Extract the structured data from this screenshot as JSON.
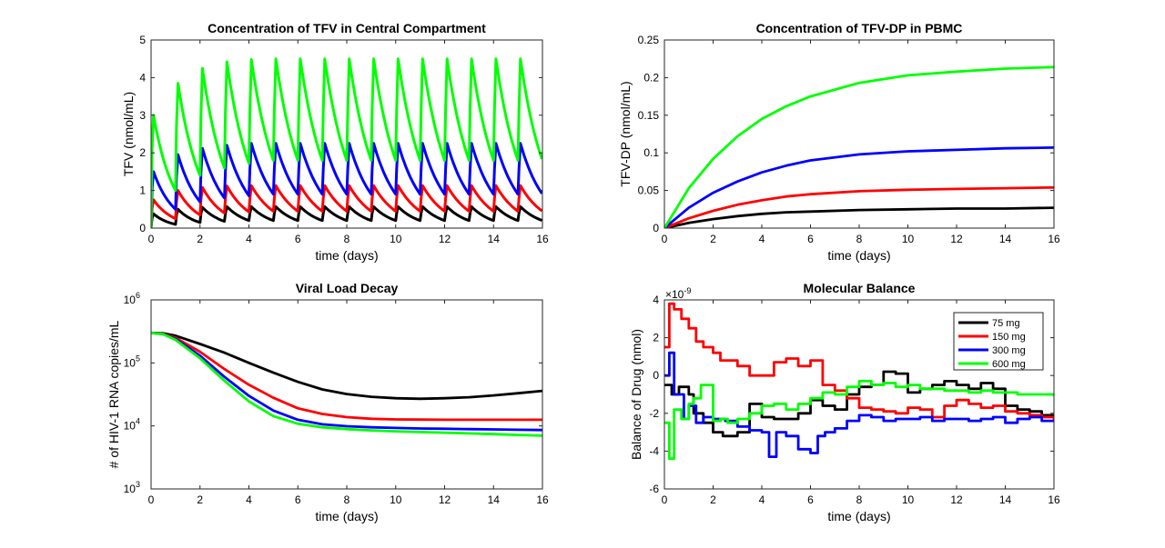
{
  "chart_data": [
    {
      "type": "line",
      "title": "Concentration of TFV in Central Compartment",
      "xlabel": "time (days)",
      "ylabel": "TFV (nmol/mL)",
      "xlim": [
        0,
        16
      ],
      "ylim": [
        0,
        5
      ],
      "xticks": [
        0,
        2,
        4,
        6,
        8,
        10,
        12,
        14,
        16
      ],
      "yticks": [
        0,
        1,
        2,
        3,
        4,
        5
      ],
      "ytick_labels": [
        "0",
        "1",
        "2",
        "3",
        "4",
        "5"
      ],
      "scale": "linear",
      "grid": false,
      "dosing_interval_days": 1,
      "series": [
        {
          "name": "75 mg",
          "color": "#000000",
          "peaks": [
            0.38,
            0.5,
            0.55,
            0.57,
            0.57,
            0.57,
            0.57,
            0.57,
            0.57,
            0.57,
            0.57,
            0.57,
            0.57,
            0.57,
            0.57,
            0.57
          ],
          "troughs": [
            0.1,
            0.15,
            0.18,
            0.2,
            0.2,
            0.2,
            0.2,
            0.2,
            0.2,
            0.2,
            0.2,
            0.2,
            0.2,
            0.2,
            0.2,
            0.2
          ]
        },
        {
          "name": "150 mg",
          "color": "#ff0000",
          "peaks": [
            0.75,
            1.0,
            1.08,
            1.12,
            1.13,
            1.13,
            1.13,
            1.13,
            1.13,
            1.13,
            1.13,
            1.13,
            1.13,
            1.13,
            1.13,
            1.13
          ],
          "troughs": [
            0.25,
            0.35,
            0.4,
            0.43,
            0.45,
            0.45,
            0.45,
            0.45,
            0.45,
            0.45,
            0.45,
            0.45,
            0.45,
            0.45,
            0.45,
            0.45
          ]
        },
        {
          "name": "300 mg",
          "color": "#0000ff",
          "peaks": [
            1.5,
            1.95,
            2.12,
            2.2,
            2.25,
            2.25,
            2.25,
            2.25,
            2.25,
            2.25,
            2.25,
            2.25,
            2.25,
            2.25,
            2.25,
            2.25
          ],
          "troughs": [
            0.5,
            0.7,
            0.8,
            0.86,
            0.9,
            0.9,
            0.9,
            0.9,
            0.9,
            0.9,
            0.9,
            0.9,
            0.9,
            0.9,
            0.9,
            0.9
          ]
        },
        {
          "name": "600 mg",
          "color": "#00ff00",
          "peaks": [
            3.0,
            3.85,
            4.25,
            4.42,
            4.48,
            4.5,
            4.5,
            4.5,
            4.5,
            4.5,
            4.5,
            4.5,
            4.5,
            4.5,
            4.5,
            4.5
          ],
          "troughs": [
            1.0,
            1.4,
            1.6,
            1.72,
            1.8,
            1.8,
            1.8,
            1.8,
            1.8,
            1.8,
            1.8,
            1.8,
            1.8,
            1.8,
            1.8,
            1.8
          ]
        }
      ]
    },
    {
      "type": "line",
      "title": "Concentration of TFV-DP in PBMC",
      "xlabel": "time (days)",
      "ylabel": "TFV-DP (nmol/mL)",
      "xlim": [
        0,
        16
      ],
      "ylim": [
        0,
        0.25
      ],
      "xticks": [
        0,
        2,
        4,
        6,
        8,
        10,
        12,
        14,
        16
      ],
      "yticks": [
        0,
        0.05,
        0.1,
        0.15,
        0.2,
        0.25
      ],
      "ytick_labels": [
        "0",
        "0.05",
        "0.1",
        "0.15",
        "0.2",
        "0.25"
      ],
      "scale": "linear",
      "grid": false,
      "series": [
        {
          "name": "75 mg",
          "color": "#000000",
          "x": [
            0,
            1,
            2,
            3,
            4,
            5,
            6,
            8,
            10,
            12,
            14,
            16
          ],
          "y": [
            0,
            0.007,
            0.012,
            0.016,
            0.019,
            0.021,
            0.022,
            0.024,
            0.025,
            0.026,
            0.026,
            0.027
          ]
        },
        {
          "name": "150 mg",
          "color": "#ff0000",
          "x": [
            0,
            1,
            2,
            3,
            4,
            5,
            6,
            8,
            10,
            12,
            14,
            16
          ],
          "y": [
            0,
            0.013,
            0.023,
            0.031,
            0.037,
            0.042,
            0.045,
            0.049,
            0.051,
            0.052,
            0.053,
            0.054
          ]
        },
        {
          "name": "300 mg",
          "color": "#0000ff",
          "x": [
            0,
            1,
            2,
            3,
            4,
            5,
            6,
            8,
            10,
            12,
            14,
            16
          ],
          "y": [
            0,
            0.027,
            0.047,
            0.062,
            0.074,
            0.083,
            0.09,
            0.098,
            0.102,
            0.104,
            0.106,
            0.107
          ]
        },
        {
          "name": "600 mg",
          "color": "#00ff00",
          "x": [
            0,
            1,
            2,
            3,
            4,
            5,
            6,
            8,
            10,
            12,
            14,
            16
          ],
          "y": [
            0,
            0.053,
            0.092,
            0.122,
            0.145,
            0.162,
            0.175,
            0.193,
            0.203,
            0.208,
            0.212,
            0.214
          ]
        }
      ]
    },
    {
      "type": "line",
      "title": "Viral Load Decay",
      "xlabel": "time (days)",
      "ylabel": "# of HIV-1 RNA copies/mL",
      "xlim": [
        0,
        16
      ],
      "ylim": [
        1000,
        1000000
      ],
      "xticks": [
        0,
        2,
        4,
        6,
        8,
        10,
        12,
        14,
        16
      ],
      "yticks": [
        1000,
        10000,
        100000,
        1000000
      ],
      "ytick_labels": [
        "10",
        "10",
        "10",
        "10"
      ],
      "ytick_exponents": [
        "3",
        "4",
        "5",
        "6"
      ],
      "scale": "log",
      "grid": false,
      "series": [
        {
          "name": "75 mg",
          "color": "#000000",
          "x": [
            0,
            0.5,
            1,
            2,
            3,
            4,
            5,
            6,
            7,
            8,
            9,
            10,
            11,
            12,
            13,
            14,
            15,
            16
          ],
          "y": [
            300000,
            295000,
            270000,
            200000,
            145000,
            100000,
            70000,
            50000,
            38000,
            32000,
            29000,
            27500,
            27000,
            27500,
            28500,
            30500,
            33000,
            36000
          ]
        },
        {
          "name": "150 mg",
          "color": "#ff0000",
          "x": [
            0,
            0.5,
            1,
            2,
            3,
            4,
            5,
            6,
            7,
            8,
            9,
            10,
            11,
            12,
            13,
            14,
            15,
            16
          ],
          "y": [
            300000,
            290000,
            250000,
            150000,
            80000,
            45000,
            28000,
            19000,
            15500,
            13800,
            13000,
            12700,
            12600,
            12500,
            12500,
            12500,
            12500,
            12500
          ]
        },
        {
          "name": "300 mg",
          "color": "#0000ff",
          "x": [
            0,
            0.5,
            1,
            2,
            3,
            4,
            5,
            6,
            7,
            8,
            9,
            10,
            11,
            12,
            13,
            14,
            15,
            16
          ],
          "y": [
            300000,
            288000,
            240000,
            130000,
            60000,
            30000,
            17500,
            12500,
            10600,
            9900,
            9500,
            9300,
            9100,
            9000,
            8900,
            8800,
            8700,
            8600
          ]
        },
        {
          "name": "600 mg",
          "color": "#00ff00",
          "x": [
            0,
            0.5,
            1,
            2,
            3,
            4,
            5,
            6,
            7,
            8,
            9,
            10,
            11,
            12,
            13,
            14,
            15,
            16
          ],
          "y": [
            300000,
            285000,
            232000,
            118000,
            52000,
            24500,
            14300,
            10800,
            9500,
            8900,
            8500,
            8200,
            8000,
            7800,
            7600,
            7400,
            7200,
            7000
          ]
        }
      ]
    },
    {
      "type": "line",
      "title": "Molecular Balance",
      "xlabel": "time (days)",
      "ylabel": "Balance of Drug (nmol)",
      "xlim": [
        0,
        16
      ],
      "ylim": [
        -6,
        4
      ],
      "y_multiplier": "×10",
      "y_multiplier_exponent": "-9",
      "xticks": [
        0,
        2,
        4,
        6,
        8,
        10,
        12,
        14,
        16
      ],
      "yticks": [
        -6,
        -4,
        -2,
        0,
        2,
        4
      ],
      "ytick_labels": [
        "-6",
        "-4",
        "-2",
        "0",
        "2",
        "4"
      ],
      "scale": "linear",
      "grid": false,
      "legend_position": "top-right",
      "legend": [
        "75 mg",
        "150 mg",
        "300 mg",
        "600 mg"
      ],
      "series": [
        {
          "name": "75 mg",
          "color": "#000000",
          "x": [
            0,
            0.3,
            0.6,
            1.0,
            1.2,
            1.6,
            2.0,
            2.4,
            3.0,
            3.5,
            4.0,
            4.5,
            5.0,
            5.5,
            6.0,
            6.5,
            7.0,
            7.5,
            8.0,
            8.5,
            9.0,
            9.5,
            10.0,
            10.5,
            11.0,
            11.5,
            12.0,
            12.5,
            13.0,
            13.5,
            14.0,
            14.5,
            15.0,
            15.5,
            16.0
          ],
          "y": [
            -0.5,
            -1.0,
            -0.6,
            -1.0,
            -2.0,
            -2.5,
            -3.0,
            -3.2,
            -3.0,
            -1.5,
            -2.2,
            -2.3,
            -2.3,
            -2.0,
            -1.3,
            -1.6,
            -1.8,
            -1.0,
            -0.6,
            -0.5,
            0.2,
            0.1,
            -0.9,
            -0.7,
            -0.5,
            -0.3,
            -0.5,
            -0.7,
            -0.4,
            -0.7,
            -1.6,
            -1.8,
            -1.9,
            -2.1,
            -2.2
          ]
        },
        {
          "name": "150 mg",
          "color": "#ff0000",
          "x": [
            0,
            0.2,
            0.4,
            0.7,
            1.0,
            1.3,
            1.6,
            2.0,
            2.3,
            2.6,
            3.0,
            3.5,
            4.0,
            4.5,
            5.0,
            5.5,
            6.0,
            6.5,
            7.0,
            7.5,
            8.0,
            8.5,
            9.0,
            9.5,
            10.0,
            10.5,
            11.0,
            11.5,
            12.0,
            12.5,
            13.0,
            13.5,
            14.0,
            14.5,
            15.0,
            15.5,
            16.0
          ],
          "y": [
            1.5,
            3.8,
            3.5,
            3.0,
            2.5,
            1.8,
            1.5,
            1.2,
            0.8,
            0.8,
            0.5,
            0.0,
            0.0,
            0.7,
            0.9,
            0.5,
            0.8,
            -0.5,
            -0.8,
            -1.2,
            -1.7,
            -1.8,
            -1.9,
            -2.0,
            -1.7,
            -1.8,
            -2.2,
            -1.6,
            -1.3,
            -1.5,
            -1.7,
            -1.6,
            -1.9,
            -2.0,
            -2.1,
            -2.2,
            -2.4
          ]
        },
        {
          "name": "300 mg",
          "color": "#0000ff",
          "x": [
            0,
            0.2,
            0.4,
            0.8,
            1.0,
            1.3,
            1.6,
            2.0,
            2.5,
            3.0,
            3.5,
            4.0,
            4.3,
            4.6,
            5.0,
            5.5,
            6.0,
            6.3,
            6.6,
            7.0,
            7.5,
            8.0,
            8.5,
            9.0,
            9.5,
            10.0,
            10.5,
            11.0,
            11.5,
            12.0,
            12.5,
            13.0,
            13.5,
            14.0,
            14.5,
            15.0,
            15.5,
            16.0
          ],
          "y": [
            0.0,
            1.2,
            -1.0,
            -2.3,
            -1.6,
            -2.5,
            -2.2,
            -2.3,
            -2.4,
            -2.7,
            -2.9,
            -3.0,
            -4.3,
            -3.0,
            -3.2,
            -3.9,
            -4.1,
            -3.2,
            -3.0,
            -2.8,
            -2.4,
            -2.1,
            -2.2,
            -2.4,
            -2.3,
            -2.3,
            -2.2,
            -2.4,
            -2.3,
            -2.3,
            -2.4,
            -2.3,
            -2.2,
            -2.5,
            -2.3,
            -2.2,
            -2.4,
            -2.4
          ]
        },
        {
          "name": "600 mg",
          "color": "#00ff00",
          "x": [
            0,
            0.2,
            0.4,
            0.7,
            1.0,
            1.2,
            1.5,
            2.0,
            2.3,
            2.6,
            3.0,
            3.5,
            4.0,
            4.5,
            5.0,
            5.5,
            6.0,
            6.5,
            7.0,
            7.5,
            8.0,
            8.5,
            9.0,
            9.5,
            10.0,
            10.5,
            11.0,
            11.5,
            12.0,
            12.5,
            13.0,
            13.5,
            14.0,
            14.5,
            15.0,
            15.5,
            16.0
          ],
          "y": [
            -2.5,
            -4.4,
            -1.8,
            -2.3,
            -1.5,
            -1.2,
            -0.5,
            -2.4,
            -2.3,
            -2.5,
            -2.3,
            -2.0,
            -1.6,
            -1.5,
            -1.8,
            -1.5,
            -1.2,
            -0.9,
            -1.0,
            -0.6,
            -0.3,
            -0.5,
            -0.4,
            -0.6,
            -0.5,
            -0.7,
            -0.7,
            -0.8,
            -0.8,
            -0.9,
            -0.8,
            -0.9,
            -0.9,
            -1.0,
            -1.0,
            -1.0,
            -1.1
          ]
        }
      ]
    }
  ]
}
